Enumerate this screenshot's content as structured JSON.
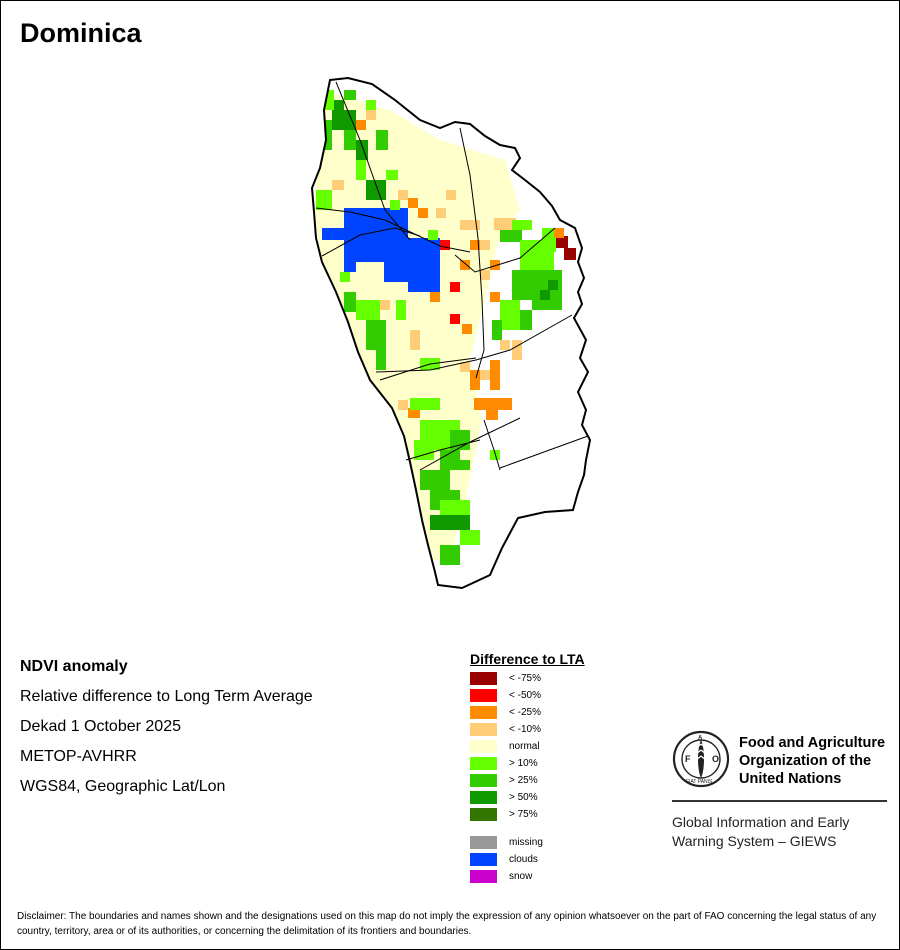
{
  "title": "Dominica",
  "info": {
    "product": "NDVI anomaly",
    "description": "Relative difference to Long Term Average",
    "period": "Dekad 1 October 2025",
    "sensor": "METOP-AVHRR",
    "projection": "WGS84, Geographic Lat/Lon"
  },
  "legend": {
    "title": "Difference to LTA",
    "items": [
      {
        "label": "< -75%",
        "color": "#990000"
      },
      {
        "label": "< -50%",
        "color": "#ff0000"
      },
      {
        "label": "< -25%",
        "color": "#ff8c00"
      },
      {
        "label": "< -10%",
        "color": "#ffcc77"
      },
      {
        "label": "normal",
        "color": "#ffffcc"
      },
      {
        "label": "> 10%",
        "color": "#66ff00"
      },
      {
        "label": "> 25%",
        "color": "#33cc00"
      },
      {
        "label": "> 50%",
        "color": "#119900"
      },
      {
        "label": "> 75%",
        "color": "#337700"
      }
    ],
    "extra": [
      {
        "label": "missing",
        "color": "#999999"
      },
      {
        "label": "clouds",
        "color": "#0044ff"
      },
      {
        "label": "snow",
        "color": "#cc00cc"
      }
    ]
  },
  "organization": {
    "name": "Food and Agriculture Organization of the United Nations",
    "system": "Global Information and Early Warning System – GIEWS",
    "logo_text": "FAO",
    "logo_motto": "FIAT PANIS"
  },
  "disclaimer": "Disclaimer: The boundaries and names shown and the designations used on this map do not imply the expression of any opinion whatsoever on the part of FAO concerning the legal status of any country, territory, area or of its authorities, or concerning the delimitation of its frontiers and boundaries."
}
